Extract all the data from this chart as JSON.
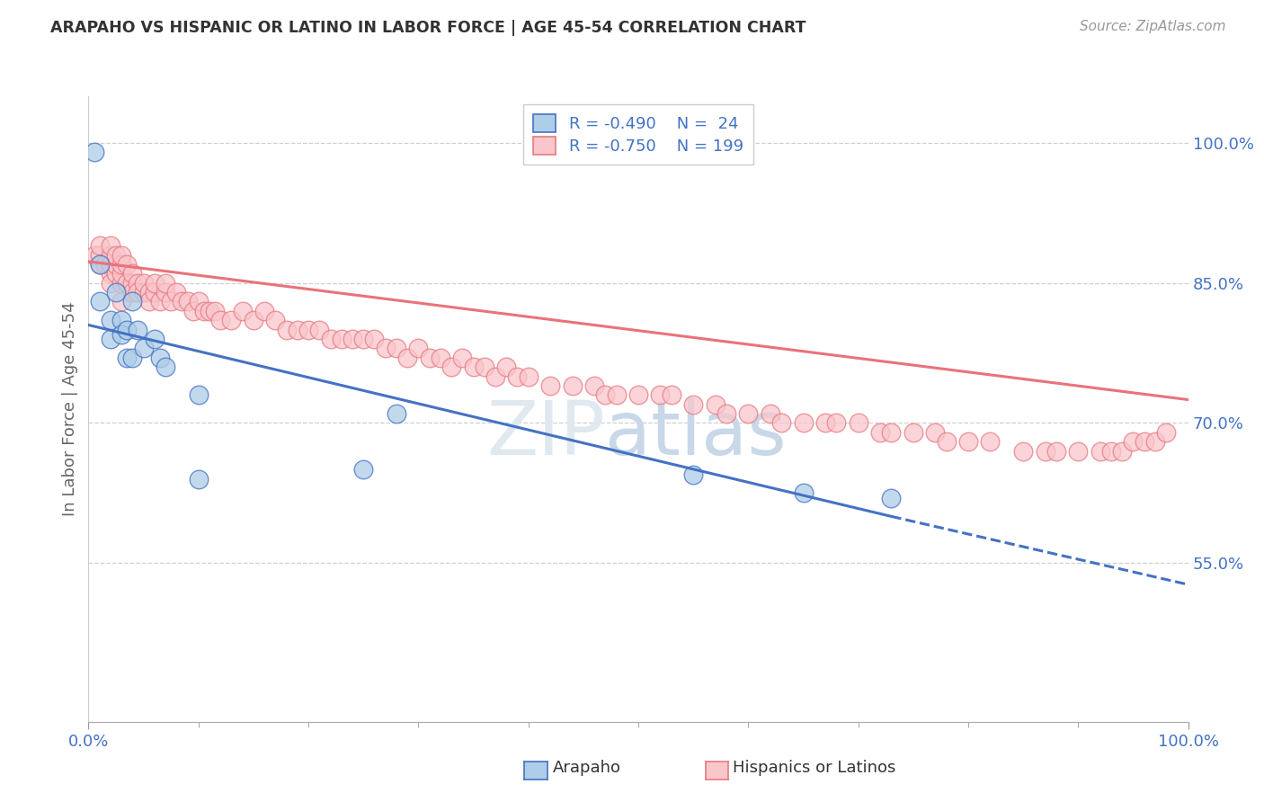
{
  "title": "ARAPAHO VS HISPANIC OR LATINO IN LABOR FORCE | AGE 45-54 CORRELATION CHART",
  "source": "Source: ZipAtlas.com",
  "ylabel": "In Labor Force | Age 45-54",
  "ytick_labels": [
    "55.0%",
    "70.0%",
    "85.0%",
    "100.0%"
  ],
  "ytick_values": [
    0.55,
    0.7,
    0.85,
    1.0
  ],
  "legend_label1": "Arapaho",
  "legend_label2": "Hispanics or Latinos",
  "legend_R1": "R = -0.490",
  "legend_N1": "N =  24",
  "legend_R2": "R = -0.750",
  "legend_N2": "N = 199",
  "color_arapaho_fill": "#aecde8",
  "color_arapaho_edge": "#4472c4",
  "color_hispanic_fill": "#f9c6cb",
  "color_hispanic_edge": "#e87a82",
  "color_line_arapaho": "#4472c4",
  "color_line_hispanic": "#e8737a",
  "color_title": "#333333",
  "color_legend_text": "#4472c4",
  "background": "#ffffff",
  "arapaho_x": [
    0.005,
    0.01,
    0.01,
    0.02,
    0.02,
    0.025,
    0.03,
    0.03,
    0.035,
    0.035,
    0.04,
    0.04,
    0.045,
    0.05,
    0.06,
    0.065,
    0.07,
    0.1,
    0.28,
    0.55,
    0.65,
    0.73,
    0.25,
    0.1
  ],
  "arapaho_y": [
    0.99,
    0.87,
    0.83,
    0.81,
    0.79,
    0.84,
    0.81,
    0.795,
    0.8,
    0.77,
    0.83,
    0.77,
    0.8,
    0.78,
    0.79,
    0.77,
    0.76,
    0.73,
    0.71,
    0.645,
    0.625,
    0.62,
    0.65,
    0.64
  ],
  "hispanic_x": [
    0.005,
    0.01,
    0.01,
    0.01,
    0.015,
    0.02,
    0.02,
    0.02,
    0.02,
    0.02,
    0.025,
    0.025,
    0.025,
    0.03,
    0.03,
    0.03,
    0.03,
    0.03,
    0.035,
    0.035,
    0.04,
    0.04,
    0.04,
    0.045,
    0.045,
    0.05,
    0.05,
    0.055,
    0.055,
    0.06,
    0.06,
    0.065,
    0.07,
    0.07,
    0.075,
    0.08,
    0.085,
    0.09,
    0.095,
    0.1,
    0.105,
    0.11,
    0.115,
    0.12,
    0.13,
    0.14,
    0.15,
    0.16,
    0.17,
    0.18,
    0.19,
    0.2,
    0.21,
    0.22,
    0.23,
    0.24,
    0.25,
    0.26,
    0.27,
    0.28,
    0.29,
    0.3,
    0.31,
    0.32,
    0.33,
    0.34,
    0.35,
    0.36,
    0.37,
    0.38,
    0.39,
    0.4,
    0.42,
    0.44,
    0.46,
    0.47,
    0.48,
    0.5,
    0.52,
    0.53,
    0.55,
    0.57,
    0.58,
    0.6,
    0.62,
    0.63,
    0.65,
    0.67,
    0.68,
    0.7,
    0.72,
    0.73,
    0.75,
    0.77,
    0.78,
    0.8,
    0.82,
    0.85,
    0.87,
    0.88,
    0.9,
    0.92,
    0.93,
    0.94,
    0.95,
    0.96,
    0.97,
    0.98
  ],
  "hispanic_y": [
    0.88,
    0.87,
    0.88,
    0.89,
    0.87,
    0.86,
    0.87,
    0.88,
    0.89,
    0.85,
    0.86,
    0.87,
    0.88,
    0.85,
    0.86,
    0.87,
    0.88,
    0.83,
    0.85,
    0.87,
    0.85,
    0.86,
    0.84,
    0.85,
    0.84,
    0.84,
    0.85,
    0.84,
    0.83,
    0.84,
    0.85,
    0.83,
    0.84,
    0.85,
    0.83,
    0.84,
    0.83,
    0.83,
    0.82,
    0.83,
    0.82,
    0.82,
    0.82,
    0.81,
    0.81,
    0.82,
    0.81,
    0.82,
    0.81,
    0.8,
    0.8,
    0.8,
    0.8,
    0.79,
    0.79,
    0.79,
    0.79,
    0.79,
    0.78,
    0.78,
    0.77,
    0.78,
    0.77,
    0.77,
    0.76,
    0.77,
    0.76,
    0.76,
    0.75,
    0.76,
    0.75,
    0.75,
    0.74,
    0.74,
    0.74,
    0.73,
    0.73,
    0.73,
    0.73,
    0.73,
    0.72,
    0.72,
    0.71,
    0.71,
    0.71,
    0.7,
    0.7,
    0.7,
    0.7,
    0.7,
    0.69,
    0.69,
    0.69,
    0.69,
    0.68,
    0.68,
    0.68,
    0.67,
    0.67,
    0.67,
    0.67,
    0.67,
    0.67,
    0.67,
    0.68,
    0.68,
    0.68,
    0.69
  ],
  "xlim": [
    0.0,
    1.0
  ],
  "ylim": [
    0.38,
    1.05
  ],
  "blue_line_x0": 0.0,
  "blue_line_y0": 0.805,
  "blue_line_x1": 0.73,
  "blue_line_y1": 0.6,
  "blue_line_dash_x1": 1.0,
  "blue_line_dash_y1": 0.527,
  "pink_line_x0": 0.0,
  "pink_line_y0": 0.873,
  "pink_line_x1": 1.0,
  "pink_line_y1": 0.725,
  "watermark_zip": "ZIP",
  "watermark_atlas": "atlas",
  "grid_color": "#d0d0d0",
  "xtick_minor_count": 9
}
